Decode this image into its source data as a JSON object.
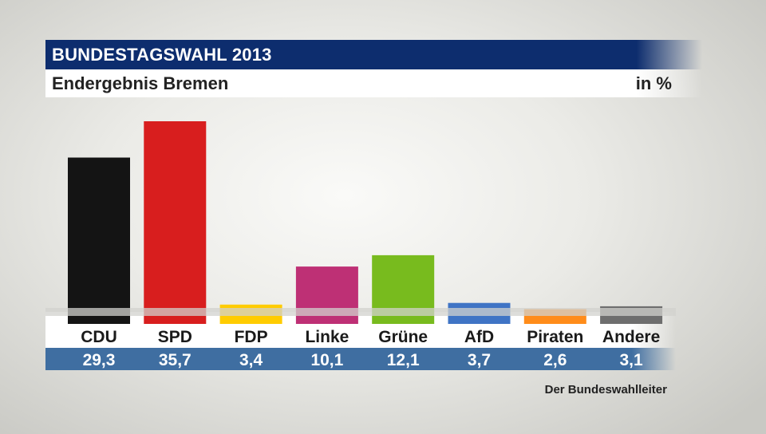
{
  "header": {
    "title": "BUNDESTAGSWAHL 2013",
    "subtitle": "Endergebnis Bremen",
    "unit": "in %"
  },
  "source": "Der Bundeswahlleiter",
  "colors": {
    "title_bar": "#0d2d6e",
    "values_bar": "#3f6ea1"
  },
  "chart_data": {
    "type": "bar",
    "title": "BUNDESTAGSWAHL 2013",
    "subtitle": "Endergebnis Bremen",
    "ylabel": "in %",
    "xlabel": "",
    "categories": [
      "CDU",
      "SPD",
      "FDP",
      "Linke",
      "Grüne",
      "AfD",
      "Piraten",
      "Andere"
    ],
    "values": [
      29.3,
      35.7,
      3.4,
      10.1,
      12.1,
      3.7,
      2.6,
      3.1
    ],
    "value_labels": [
      "29,3",
      "35,7",
      "3,4",
      "10,1",
      "12,1",
      "3,7",
      "2,6",
      "3,1"
    ],
    "colors": [
      "#141414",
      "#d81e1e",
      "#ffcc00",
      "#be3075",
      "#78bb1e",
      "#3f74c5",
      "#ff8c1a",
      "#6e6e6e"
    ],
    "ylim": [
      0,
      35.7
    ],
    "grid": false,
    "legend": "none"
  }
}
